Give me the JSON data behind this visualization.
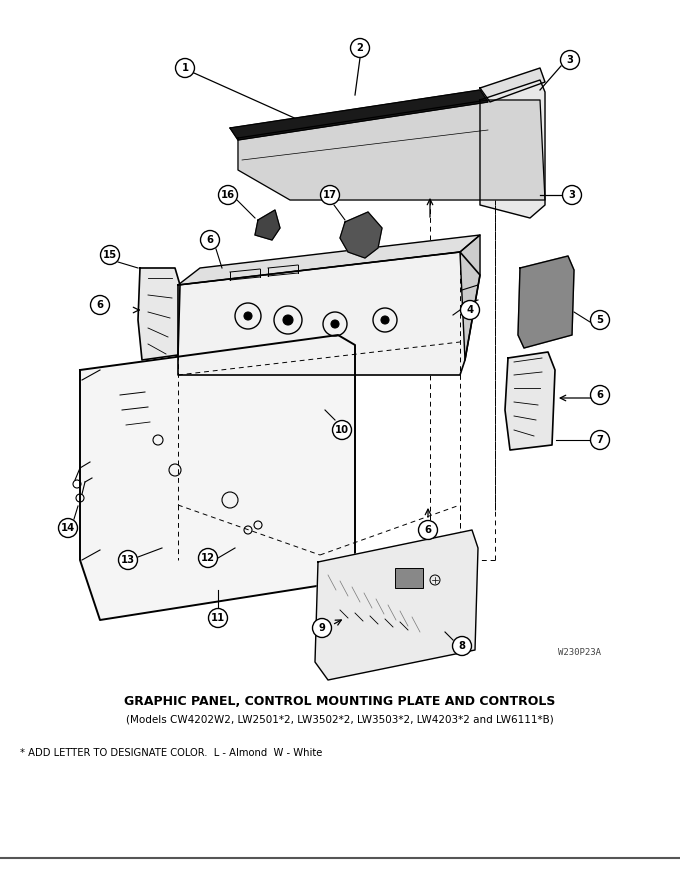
{
  "title": "GRAPHIC PANEL, CONTROL MOUNTING PLATE AND CONTROLS",
  "subtitle": "(Models CW4202W2, LW2501*2, LW3502*2, LW3503*2, LW4203*2 and LW6111*B)",
  "footnote": "* ADD LETTER TO DESIGNATE COLOR.  L - Almond  W - White",
  "watermark": "W230P23A",
  "bg_color": "#ffffff",
  "lc": "#000000",
  "gray_fill": "#d8d8d8",
  "dark_fill": "#555555",
  "black_fill": "#111111"
}
